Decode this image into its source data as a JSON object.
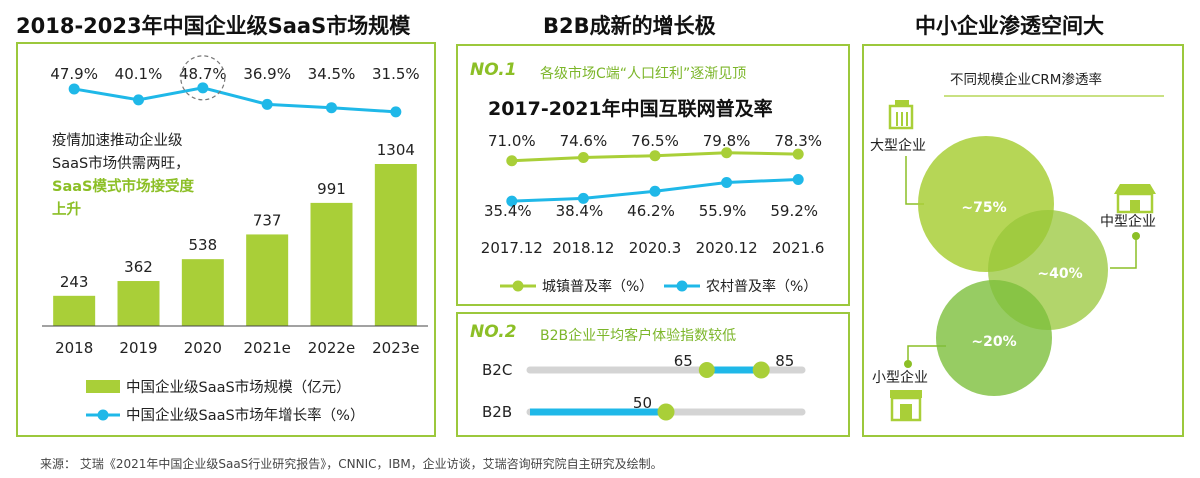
{
  "colors": {
    "green": "#a9cf38",
    "green_dark": "#8cbf26",
    "blue": "#1fb8e8",
    "gray_track": "#d4d4d4",
    "heading_green": "#7cb62a"
  },
  "titles": {
    "left": "2018-2023年中国企业级SaaS市场规模",
    "middle": "B2B成新的增长极",
    "right": "中小企业渗透空间大"
  },
  "left_panel": {
    "annotation_line1": "疫情加速推动企业级",
    "annotation_line2": "SaaS市场供需两旺，",
    "annotation_line3": "SaaS模式市场接受度",
    "annotation_line4": "上升"
  },
  "mid_top": {
    "no_label": "NO.1",
    "heading": "各级市场C端“人口红利”逐渐见顶",
    "subtitle": "2017-2021年中国互联网普及率"
  },
  "mid_bottom": {
    "no_label": "NO.2",
    "heading": "B2B企业平均客户体验指数较低"
  },
  "right_panel": {
    "title": "不同规模企业CRM渗透率",
    "large_label": "大型企业",
    "medium_label": "中型企业",
    "small_label": "小型企业"
  },
  "source": "来源：  艾瑞《2021年中国企业级SaaS行业研究报告》，CNNIC，IBM，企业访谈，艾瑞咨询研究院自主研究及绘制。",
  "chart_data": [
    {
      "type": "bar",
      "title": "2018-2023年中国企业级SaaS市场规模",
      "categories": [
        "2018",
        "2019",
        "2020",
        "2021e",
        "2022e",
        "2023e"
      ],
      "series": [
        {
          "name": "中国企业级SaaS市场规模（亿元）",
          "type": "bar",
          "values": [
            243,
            362,
            538,
            737,
            991,
            1304
          ],
          "labels": [
            "243",
            "362",
            "538",
            "737",
            "991",
            "1304"
          ]
        },
        {
          "name": "中国企业级SaaS市场年增长率（%）",
          "type": "line",
          "values": [
            47.9,
            40.1,
            48.7,
            36.9,
            34.5,
            31.5
          ],
          "labels": [
            "47.9%",
            "40.1%",
            "48.7%",
            "36.9%",
            "34.5%",
            "31.5%"
          ]
        }
      ],
      "highlighted_point": "2020",
      "legend_position": "bottom"
    },
    {
      "type": "line",
      "title": "2017-2021年中国互联网普及率",
      "categories": [
        "2017.12",
        "2018.12",
        "2020.3",
        "2020.12",
        "2021.6"
      ],
      "series": [
        {
          "name": "城镇普及率（%）",
          "values": [
            71.0,
            74.6,
            76.5,
            79.8,
            78.3
          ],
          "labels": [
            "71.0%",
            "74.6%",
            "76.5%",
            "79.8%",
            "78.3%"
          ]
        },
        {
          "name": "农村普及率（%）",
          "values": [
            35.4,
            38.4,
            46.2,
            55.9,
            59.2
          ],
          "labels": [
            "35.4%",
            "38.4%",
            "46.2%",
            "55.9%",
            "59.2%"
          ]
        }
      ],
      "legend_position": "bottom"
    },
    {
      "type": "bar",
      "title": "B2B企业平均客户体验指数较低",
      "categories": [
        "B2C",
        "B2B"
      ],
      "ranges": [
        {
          "category": "B2C",
          "start": 65,
          "end": 85,
          "start_label": "65",
          "end_label": "85"
        },
        {
          "category": "B2B",
          "start": 0,
          "end": 50,
          "end_label": "50"
        }
      ],
      "scale_max": 100
    },
    {
      "type": "scatter",
      "title": "不同规模企业CRM渗透率",
      "points": [
        {
          "name": "大型企业",
          "value": 75,
          "label": "~75%"
        },
        {
          "name": "中型企业",
          "value": 40,
          "label": "~40%"
        },
        {
          "name": "小型企业",
          "value": 20,
          "label": "~20%"
        }
      ]
    }
  ]
}
